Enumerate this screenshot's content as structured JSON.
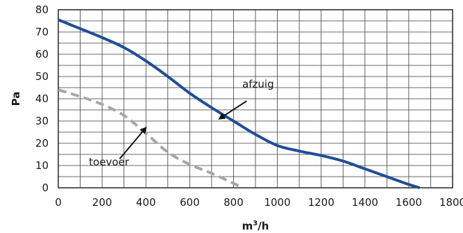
{
  "chart_data": {
    "type": "line",
    "xlabel": "m³/h",
    "ylabel": "Pa",
    "xlim": [
      0,
      1800
    ],
    "ylim": [
      0,
      80
    ],
    "x_ticks": [
      0,
      200,
      400,
      600,
      800,
      1000,
      1200,
      1400,
      1600,
      1800
    ],
    "y_ticks": [
      0,
      10,
      20,
      30,
      40,
      50,
      60,
      70,
      80
    ],
    "grid": true,
    "series": [
      {
        "name": "afzuig",
        "style": "solid",
        "color": "#1f4e96",
        "x": [
          0,
          100,
          200,
          300,
          400,
          500,
          600,
          700,
          800,
          900,
          1000,
          1100,
          1200,
          1300,
          1400,
          1500,
          1600,
          1650
        ],
        "y": [
          75.5,
          71.5,
          67.5,
          63,
          57,
          50,
          42.5,
          36,
          30,
          24,
          19,
          16.5,
          14.5,
          12,
          8.5,
          5,
          1.5,
          0
        ]
      },
      {
        "name": "toevoer",
        "style": "dashed",
        "color": "#a6a6a6",
        "x": [
          0,
          100,
          200,
          300,
          400,
          500,
          600,
          700,
          800,
          840
        ],
        "y": [
          44,
          41,
          37.5,
          32.5,
          24.5,
          16,
          10.5,
          6.5,
          2,
          0
        ]
      }
    ],
    "annotations": [
      {
        "text": "afzuig",
        "label_x": 840,
        "label_y": 45,
        "arrow_from": [
          860,
          39
        ],
        "arrow_to": [
          735,
          31
        ]
      },
      {
        "text": "toevoer",
        "label_x": 140,
        "label_y": 10,
        "arrow_from": [
          280,
          13
        ],
        "arrow_to": [
          400,
          27
        ]
      }
    ]
  }
}
